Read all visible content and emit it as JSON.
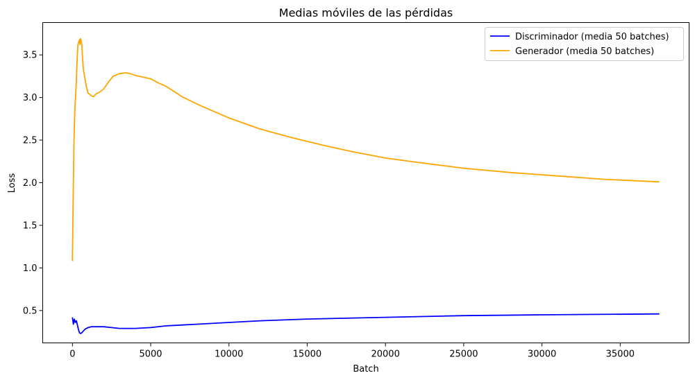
{
  "chart_data": {
    "type": "line",
    "title": "Medias móviles de las pérdidas",
    "xlabel": "Batch",
    "ylabel": "Loss",
    "xlim": [
      -1900,
      39400
    ],
    "ylim": [
      0.12,
      3.88
    ],
    "xticks": [
      0,
      5000,
      10000,
      15000,
      20000,
      25000,
      30000,
      35000
    ],
    "xtick_labels": [
      "0",
      "5000",
      "10000",
      "15000",
      "20000",
      "25000",
      "30000",
      "35000"
    ],
    "yticks": [
      0.5,
      1.0,
      1.5,
      2.0,
      2.5,
      3.0,
      3.5
    ],
    "ytick_labels": [
      "0.5",
      "1.0",
      "1.5",
      "2.0",
      "2.5",
      "3.0",
      "3.5"
    ],
    "grid": false,
    "legend_position": "top-right",
    "series": [
      {
        "name": "Discriminador (media 50 batches)",
        "color": "#0000ff",
        "x": [
          0,
          60,
          120,
          180,
          250,
          320,
          380,
          450,
          520,
          600,
          700,
          800,
          900,
          1000,
          1200,
          1500,
          2000,
          2500,
          3000,
          3500,
          4000,
          5000,
          6000,
          7000,
          8000,
          10000,
          12000,
          15000,
          20000,
          25000,
          30000,
          37500
        ],
        "values": [
          0.42,
          0.34,
          0.4,
          0.36,
          0.38,
          0.33,
          0.28,
          0.24,
          0.23,
          0.24,
          0.26,
          0.28,
          0.29,
          0.3,
          0.31,
          0.31,
          0.31,
          0.3,
          0.29,
          0.29,
          0.29,
          0.3,
          0.32,
          0.33,
          0.34,
          0.36,
          0.38,
          0.4,
          0.42,
          0.44,
          0.45,
          0.46
        ]
      },
      {
        "name": "Generador (media 50 batches)",
        "color": "#ffa500",
        "x": [
          0,
          50,
          100,
          150,
          200,
          250,
          300,
          350,
          400,
          450,
          480,
          520,
          560,
          600,
          650,
          700,
          800,
          900,
          1000,
          1100,
          1200,
          1350,
          1500,
          1700,
          2000,
          2300,
          2600,
          3000,
          3400,
          3700,
          4000,
          4500,
          5000,
          5500,
          6000,
          7000,
          8000,
          9000,
          10000,
          12000,
          14000,
          16000,
          18000,
          20000,
          22000,
          25000,
          28000,
          31000,
          34000,
          37500
        ],
        "values": [
          1.08,
          1.9,
          2.5,
          2.85,
          3.0,
          3.2,
          3.45,
          3.62,
          3.65,
          3.68,
          3.62,
          3.69,
          3.66,
          3.62,
          3.45,
          3.33,
          3.22,
          3.12,
          3.05,
          3.04,
          3.02,
          3.01,
          3.04,
          3.06,
          3.1,
          3.18,
          3.25,
          3.28,
          3.29,
          3.28,
          3.26,
          3.24,
          3.22,
          3.17,
          3.13,
          3.01,
          2.92,
          2.84,
          2.76,
          2.63,
          2.53,
          2.44,
          2.36,
          2.29,
          2.24,
          2.17,
          2.12,
          2.08,
          2.04,
          2.01
        ]
      }
    ]
  }
}
